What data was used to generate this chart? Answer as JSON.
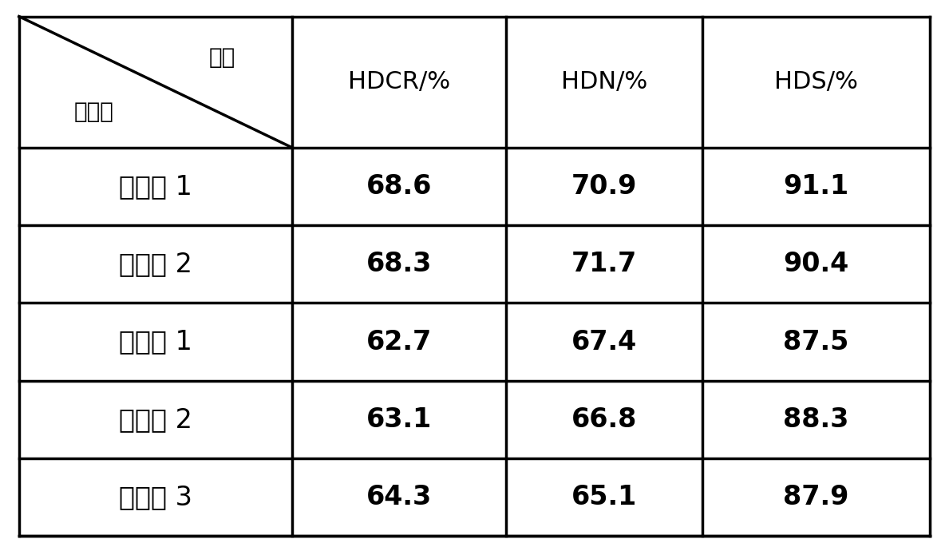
{
  "header_left_top": "项目",
  "header_left_bottom": "催化剂",
  "col_headers": [
    "HDCR/%",
    "HDN/%",
    "HDS/%"
  ],
  "rows": [
    {
      "label": "实施例 1",
      "values": [
        "68.6",
        "70.9",
        "91.1"
      ]
    },
    {
      "label": "实施例 2",
      "values": [
        "68.3",
        "71.7",
        "90.4"
      ]
    },
    {
      "label": "比较例 1",
      "values": [
        "62.7",
        "67.4",
        "87.5"
      ]
    },
    {
      "label": "比较例 2",
      "values": [
        "63.1",
        "66.8",
        "88.3"
      ]
    },
    {
      "label": "比较例 3",
      "values": [
        "64.3",
        "65.1",
        "87.9"
      ]
    }
  ],
  "bg_color": "#ffffff",
  "text_color": "#000000",
  "line_color": "#000000",
  "font_size_header": 22,
  "font_size_data": 24,
  "font_size_corner": 20,
  "bold_data": true
}
